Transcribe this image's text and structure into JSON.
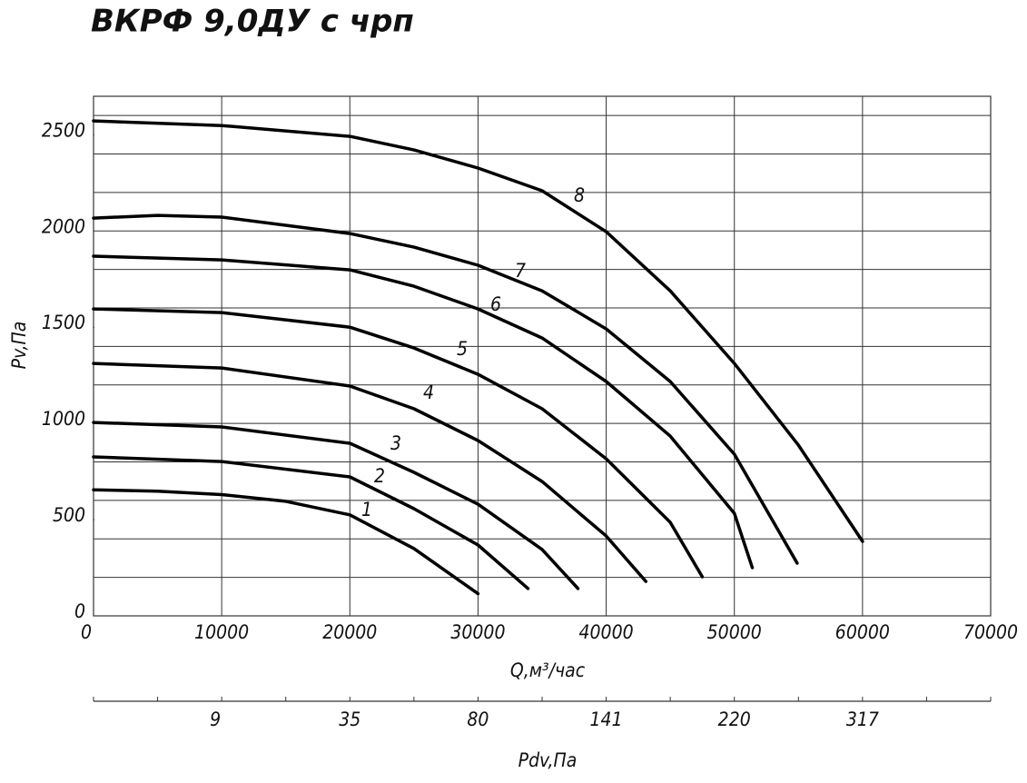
{
  "chart_data": {
    "type": "line",
    "title": "ВКРФ 9,0ДУ с чрп",
    "x_label": "Q,м³/час",
    "y_label": "Pv,Па",
    "xlim": [
      0,
      70000
    ],
    "ylim": [
      0,
      2700
    ],
    "xticks": [
      0,
      10000,
      20000,
      30000,
      40000,
      50000,
      60000,
      70000
    ],
    "yticks": [
      0,
      500,
      1000,
      1500,
      2000,
      2500
    ],
    "ygrid": [
      200,
      400,
      600,
      800,
      1000,
      1200,
      1400,
      1600,
      1800,
      2000,
      2200,
      2400,
      2600,
      2700
    ],
    "color": "#000000",
    "pdv_axis": {
      "title": "Pdv,Па",
      "tick_q": [
        0,
        5000,
        10000,
        15000,
        20000,
        25000,
        30000,
        35000,
        40000,
        45000,
        50000,
        55000,
        60000,
        65000,
        70000
      ],
      "label_q": [
        9500,
        20000,
        30000,
        40000,
        50000,
        60000
      ],
      "labels": [
        9,
        35,
        80,
        141,
        220,
        317
      ]
    },
    "series": [
      {
        "name": "1",
        "x": [
          0,
          5000,
          10000,
          15000,
          20000,
          25000,
          30000
        ],
        "values": [
          655,
          648,
          630,
          595,
          525,
          350,
          115
        ]
      },
      {
        "name": "2",
        "x": [
          0,
          10000,
          20000,
          25000,
          30000,
          33900
        ],
        "values": [
          826,
          802,
          722,
          557,
          368,
          142
        ]
      },
      {
        "name": "3",
        "x": [
          0,
          10000,
          20000,
          25000,
          30000,
          35000,
          37800
        ],
        "values": [
          1005,
          982,
          897,
          746,
          580,
          345,
          142
        ]
      },
      {
        "name": "4",
        "x": [
          0,
          10000,
          20000,
          25000,
          30000,
          35000,
          40000,
          43100
        ],
        "values": [
          1312,
          1288,
          1194,
          1076,
          911,
          698,
          415,
          179
        ]
      },
      {
        "name": "5",
        "x": [
          0,
          10000,
          20000,
          25000,
          30000,
          35000,
          40000,
          45000,
          47500
        ],
        "values": [
          1595,
          1576,
          1500,
          1392,
          1255,
          1076,
          816,
          486,
          203
        ]
      },
      {
        "name": "6",
        "x": [
          0,
          10000,
          20000,
          25000,
          30000,
          35000,
          40000,
          45000,
          50000,
          51400
        ],
        "values": [
          1869,
          1850,
          1798,
          1713,
          1595,
          1444,
          1218,
          934,
          533,
          250
        ]
      },
      {
        "name": "7",
        "x": [
          0,
          5000,
          10000,
          20000,
          25000,
          30000,
          35000,
          40000,
          45000,
          50000,
          54900
        ],
        "values": [
          2067,
          2081,
          2072,
          1987,
          1916,
          1822,
          1689,
          1491,
          1218,
          840,
          274
        ]
      },
      {
        "name": "8",
        "x": [
          0,
          10000,
          20000,
          25000,
          30000,
          35000,
          40000,
          45000,
          50000,
          55000,
          60000
        ],
        "values": [
          2572,
          2548,
          2492,
          2421,
          2327,
          2209,
          1996,
          1689,
          1312,
          887,
          387
        ]
      }
    ]
  }
}
